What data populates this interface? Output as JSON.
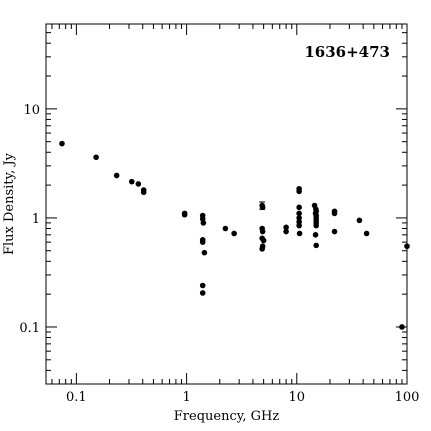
{
  "chart_data": {
    "type": "scatter",
    "title": "1636+473",
    "xlabel": "Frequency, GHz",
    "ylabel": "Flux Density, Jy",
    "xscale": "log",
    "yscale": "log",
    "xlim": [
      0.053,
      100
    ],
    "ylim": [
      0.03,
      60
    ],
    "x_tick_labels": [
      "0.1",
      "1",
      "10",
      "100"
    ],
    "y_tick_labels": [
      "0.1",
      "1",
      "10"
    ],
    "grid": false,
    "legend": "none",
    "marker_color": "#000000",
    "points": [
      {
        "x": 0.074,
        "y": 4.8
      },
      {
        "x": 0.151,
        "y": 3.6
      },
      {
        "x": 0.232,
        "y": 2.45
      },
      {
        "x": 0.318,
        "y": 2.15
      },
      {
        "x": 0.365,
        "y": 2.05
      },
      {
        "x": 0.408,
        "y": 1.8
      },
      {
        "x": 0.408,
        "y": 1.72
      },
      {
        "x": 0.96,
        "y": 1.1
      },
      {
        "x": 0.96,
        "y": 1.07
      },
      {
        "x": 1.4,
        "y": 1.05
      },
      {
        "x": 1.4,
        "y": 0.98
      },
      {
        "x": 1.42,
        "y": 0.9
      },
      {
        "x": 1.4,
        "y": 0.63
      },
      {
        "x": 1.4,
        "y": 0.6
      },
      {
        "x": 1.45,
        "y": 0.48
      },
      {
        "x": 1.4,
        "y": 0.24
      },
      {
        "x": 1.4,
        "y": 0.205
      },
      {
        "x": 2.25,
        "y": 0.8
      },
      {
        "x": 2.7,
        "y": 0.72
      },
      {
        "x": 4.85,
        "y": 1.3,
        "yerr": 0.1
      },
      {
        "x": 4.9,
        "y": 1.25
      },
      {
        "x": 4.85,
        "y": 0.8
      },
      {
        "x": 4.9,
        "y": 0.75
      },
      {
        "x": 4.85,
        "y": 0.65
      },
      {
        "x": 5.0,
        "y": 0.62
      },
      {
        "x": 4.9,
        "y": 0.55
      },
      {
        "x": 4.85,
        "y": 0.52
      },
      {
        "x": 8.0,
        "y": 0.82
      },
      {
        "x": 8.0,
        "y": 0.75
      },
      {
        "x": 10.5,
        "y": 1.85
      },
      {
        "x": 10.5,
        "y": 1.75
      },
      {
        "x": 10.5,
        "y": 1.25
      },
      {
        "x": 10.5,
        "y": 1.1
      },
      {
        "x": 10.5,
        "y": 1.0
      },
      {
        "x": 10.5,
        "y": 0.92
      },
      {
        "x": 10.5,
        "y": 0.85
      },
      {
        "x": 10.6,
        "y": 0.72
      },
      {
        "x": 14.5,
        "y": 1.3
      },
      {
        "x": 14.9,
        "y": 1.2
      },
      {
        "x": 15.0,
        "y": 1.15
      },
      {
        "x": 14.8,
        "y": 1.1
      },
      {
        "x": 15.0,
        "y": 1.05
      },
      {
        "x": 15.0,
        "y": 1.0
      },
      {
        "x": 15.0,
        "y": 0.95
      },
      {
        "x": 15.0,
        "y": 0.9
      },
      {
        "x": 15.0,
        "y": 0.85
      },
      {
        "x": 14.8,
        "y": 0.7
      },
      {
        "x": 15.0,
        "y": 0.56
      },
      {
        "x": 22.0,
        "y": 1.15
      },
      {
        "x": 22.0,
        "y": 1.1
      },
      {
        "x": 22.0,
        "y": 0.75
      },
      {
        "x": 37.0,
        "y": 0.95
      },
      {
        "x": 43.0,
        "y": 0.72
      },
      {
        "x": 90.0,
        "y": 0.1
      },
      {
        "x": 100.0,
        "y": 0.55
      }
    ]
  }
}
